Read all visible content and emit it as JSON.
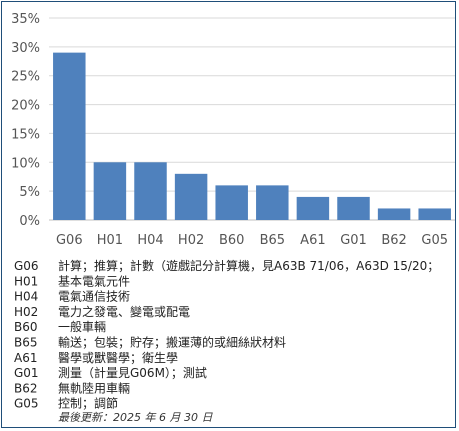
{
  "colors": {
    "bar": "#4f81bd",
    "grid": "#d9d9d9",
    "axis": "#bfbfbf",
    "border": "#1f4e79"
  },
  "chart_data": {
    "type": "bar",
    "categories": [
      "G06",
      "H01",
      "H04",
      "H02",
      "B60",
      "B65",
      "A61",
      "G01",
      "B62",
      "G05"
    ],
    "values": [
      29,
      10,
      10,
      8,
      6,
      6,
      4,
      4,
      2,
      2
    ],
    "value_unit": "%",
    "ylim": [
      0,
      35
    ],
    "yticks": [
      "0%",
      "5%",
      "10%",
      "15%",
      "20%",
      "25%",
      "30%",
      "35%"
    ],
    "grid": true,
    "title": "",
    "xlabel": "",
    "ylabel": ""
  },
  "legend": [
    {
      "code": "G06",
      "desc": "計算；推算；計數（遊戲記分計算機，見A63B 71/06，A63D 15/20；"
    },
    {
      "code": "H01",
      "desc": "基本電氣元件"
    },
    {
      "code": "H04",
      "desc": "電氣通信技術"
    },
    {
      "code": "H02",
      "desc": "電力之發電、變電或配電"
    },
    {
      "code": "B60",
      "desc": "一般車輛"
    },
    {
      "code": "B65",
      "desc": "輸送；包裝；貯存；搬運薄的或細絲狀材料"
    },
    {
      "code": "A61",
      "desc": "醫學或獸醫學；衛生學"
    },
    {
      "code": "G01",
      "desc": "測量（計量見G06M）；測試"
    },
    {
      "code": "B62",
      "desc": "無軌陸用車輛"
    },
    {
      "code": "G05",
      "desc": "控制；調節"
    }
  ],
  "footnote": "最後更新：2025 年 6 月 30 日"
}
